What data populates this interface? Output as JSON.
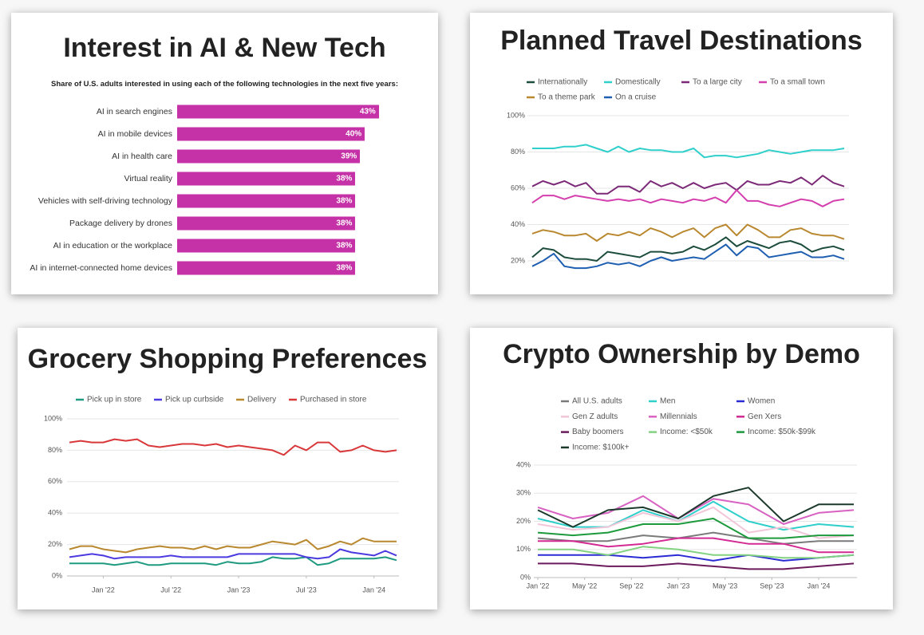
{
  "chart_data": [
    {
      "type": "bar",
      "title": "Interest in AI & New Tech",
      "subtitle": "Share of U.S. adults interested in using each of the following technologies in the next five years:",
      "categories": [
        "AI in search engines",
        "AI in mobile devices",
        "AI in health care",
        "Virtual reality",
        "Vehicles with self-driving technology",
        "Package delivery by drones",
        "AI in education or the workplace",
        "AI in internet-connected home devices"
      ],
      "values": [
        43,
        40,
        39,
        38,
        38,
        38,
        38,
        38
      ],
      "value_labels": [
        "43%",
        "40%",
        "39%",
        "38%",
        "38%",
        "38%",
        "38%",
        "38%"
      ],
      "color": "#c531a6"
    },
    {
      "type": "line",
      "title": "Planned Travel Destinations",
      "ylim": [
        15,
        100
      ],
      "yticks": [
        {
          "value": 20,
          "label": "20%"
        },
        {
          "value": 40,
          "label": "40%"
        },
        {
          "value": 60,
          "label": "60%"
        },
        {
          "value": 80,
          "label": "80%"
        },
        {
          "value": 100,
          "label": "100%"
        }
      ],
      "grid": true,
      "series": [
        {
          "name": "Internationally",
          "color": "#1d4d3c",
          "values": [
            22,
            27,
            26,
            22,
            21,
            21,
            20,
            25,
            24,
            23,
            22,
            25,
            25,
            24,
            25,
            28,
            26,
            29,
            33,
            28,
            31,
            29,
            27,
            30,
            31,
            29,
            25,
            27,
            28,
            26
          ]
        },
        {
          "name": "Domestically",
          "color": "#2fcfcb",
          "values": [
            82,
            82,
            82,
            83,
            83,
            84,
            82,
            80,
            83,
            80,
            82,
            81,
            81,
            80,
            80,
            82,
            77,
            78,
            78,
            77,
            78,
            79,
            81,
            80,
            79,
            80,
            81,
            81,
            81,
            82
          ]
        },
        {
          "name": "To a large city",
          "color": "#7c2a78",
          "values": [
            61,
            64,
            62,
            64,
            61,
            63,
            57,
            57,
            61,
            61,
            58,
            64,
            61,
            63,
            60,
            63,
            60,
            62,
            63,
            59,
            64,
            62,
            62,
            64,
            63,
            66,
            62,
            67,
            63,
            61
          ]
        },
        {
          "name": "To a small town",
          "color": "#d43fae",
          "values": [
            52,
            56,
            56,
            54,
            56,
            55,
            54,
            53,
            54,
            53,
            54,
            52,
            54,
            53,
            52,
            54,
            53,
            55,
            52,
            59,
            53,
            53,
            51,
            50,
            52,
            54,
            53,
            50,
            53,
            54
          ]
        },
        {
          "name": "To a theme park",
          "color": "#b9882f",
          "values": [
            35,
            37,
            36,
            34,
            34,
            35,
            31,
            35,
            34,
            36,
            34,
            38,
            36,
            33,
            36,
            38,
            33,
            38,
            40,
            34,
            40,
            37,
            33,
            33,
            37,
            38,
            35,
            34,
            34,
            32
          ]
        },
        {
          "name": "On a cruise",
          "color": "#1f5fb2",
          "values": [
            17,
            20,
            24,
            17,
            16,
            16,
            17,
            19,
            18,
            19,
            17,
            20,
            22,
            20,
            21,
            22,
            21,
            25,
            29,
            23,
            28,
            27,
            22,
            23,
            24,
            25,
            22,
            22,
            23,
            21
          ]
        }
      ]
    },
    {
      "type": "line",
      "title": "Grocery Shopping Preferences",
      "x": [
        "2021-10",
        "2021-11",
        "2021-12",
        "2022-01",
        "2022-02",
        "2022-03",
        "2022-04",
        "2022-05",
        "2022-06",
        "2022-07",
        "2022-08",
        "2022-09",
        "2022-10",
        "2022-11",
        "2022-12",
        "2023-01",
        "2023-02",
        "2023-03",
        "2023-04",
        "2023-05",
        "2023-06",
        "2023-07",
        "2023-08",
        "2023-09",
        "2023-10",
        "2023-11",
        "2023-12",
        "2024-01",
        "2024-02",
        "2024-03"
      ],
      "xlim": [
        "2021-10",
        "2024-03"
      ],
      "xticks": [
        {
          "value": "2022-01",
          "label": "Jan '22"
        },
        {
          "value": "2022-07",
          "label": "Jul '22"
        },
        {
          "value": "2023-01",
          "label": "Jan '23"
        },
        {
          "value": "2023-07",
          "label": "Jul '23"
        },
        {
          "value": "2024-01",
          "label": "Jan '24"
        }
      ],
      "ylim": [
        0,
        100
      ],
      "yticks": [
        {
          "value": 0,
          "label": "0%"
        },
        {
          "value": 20,
          "label": "20%"
        },
        {
          "value": 40,
          "label": "40%"
        },
        {
          "value": 60,
          "label": "60%"
        },
        {
          "value": 80,
          "label": "80%"
        },
        {
          "value": 100,
          "label": "100%"
        }
      ],
      "grid": true,
      "series": [
        {
          "name": "Pick up in store",
          "color": "#1e9a80",
          "values": [
            8,
            8,
            8,
            8,
            7,
            8,
            9,
            7,
            7,
            8,
            8,
            8,
            8,
            7,
            9,
            8,
            8,
            9,
            12,
            11,
            11,
            12,
            7,
            8,
            11,
            11,
            11,
            11,
            12,
            10
          ]
        },
        {
          "name": "Pick up curbside",
          "color": "#4b3ae0",
          "values": [
            12,
            13,
            14,
            13,
            11,
            12,
            12,
            12,
            12,
            13,
            12,
            12,
            12,
            12,
            12,
            14,
            14,
            14,
            14,
            14,
            14,
            12,
            11,
            12,
            17,
            15,
            14,
            13,
            16,
            13
          ]
        },
        {
          "name": "Delivery",
          "color": "#b9882f",
          "values": [
            17,
            19,
            19,
            17,
            16,
            15,
            17,
            18,
            19,
            18,
            18,
            17,
            19,
            17,
            19,
            18,
            18,
            20,
            22,
            21,
            20,
            23,
            17,
            19,
            22,
            20,
            24,
            22,
            22,
            22
          ]
        },
        {
          "name": "Purchased in store",
          "color": "#d9383a",
          "values": [
            85,
            86,
            85,
            85,
            87,
            86,
            87,
            83,
            82,
            83,
            84,
            84,
            83,
            84,
            82,
            83,
            82,
            81,
            80,
            77,
            83,
            80,
            85,
            85,
            79,
            80,
            83,
            80,
            79,
            80
          ]
        }
      ]
    },
    {
      "type": "line",
      "title": "Crypto Ownership by Demo",
      "x": [
        "2022-01",
        "2022-04",
        "2022-07",
        "2022-10",
        "2023-01",
        "2023-04",
        "2023-07",
        "2023-10",
        "2024-01",
        "2024-04"
      ],
      "xlim": [
        "2022-01",
        "2024-04"
      ],
      "xticks": [
        {
          "value": "2022-01",
          "label": "Jan '22"
        },
        {
          "value": "2022-05",
          "label": "May '22"
        },
        {
          "value": "2022-09",
          "label": "Sep '22"
        },
        {
          "value": "2023-01",
          "label": "Jan '23"
        },
        {
          "value": "2023-05",
          "label": "May '23"
        },
        {
          "value": "2023-09",
          "label": "Sep '23"
        },
        {
          "value": "2024-01",
          "label": "Jan '24"
        }
      ],
      "ylim": [
        0,
        40
      ],
      "yticks": [
        {
          "value": 0,
          "label": "0%"
        },
        {
          "value": 10,
          "label": "10%"
        },
        {
          "value": 20,
          "label": "20%"
        },
        {
          "value": 30,
          "label": "30%"
        },
        {
          "value": 40,
          "label": "40%"
        }
      ],
      "grid": true,
      "series": [
        {
          "name": "All U.S. adults",
          "color": "#7a7a7a",
          "values": [
            14,
            13,
            13,
            15,
            14,
            16,
            14,
            12,
            13,
            13
          ]
        },
        {
          "name": "Men",
          "color": "#2fcfcb",
          "values": [
            21,
            18,
            18,
            24,
            20,
            27,
            20,
            17,
            19,
            18
          ]
        },
        {
          "name": "Women",
          "color": "#2b2bd6",
          "values": [
            8,
            8,
            8,
            7,
            8,
            6,
            8,
            6,
            7,
            8
          ]
        },
        {
          "name": "Gen Z adults",
          "color": "#f2c6d8",
          "values": [
            19,
            17,
            18,
            23,
            20,
            25,
            16,
            18,
            14,
            15
          ]
        },
        {
          "name": "Millennials",
          "color": "#d862c2",
          "values": [
            25,
            21,
            23,
            29,
            21,
            28,
            26,
            19,
            23,
            24
          ]
        },
        {
          "name": "Gen Xers",
          "color": "#d22a92",
          "values": [
            13,
            13,
            11,
            12,
            14,
            14,
            12,
            12,
            9,
            9
          ]
        },
        {
          "name": "Baby boomers",
          "color": "#6b1b5c",
          "values": [
            5,
            5,
            4,
            4,
            5,
            4,
            3,
            3,
            4,
            5
          ]
        },
        {
          "name": "Income: <$50k",
          "color": "#82d282",
          "values": [
            10,
            10,
            8,
            11,
            10,
            8,
            8,
            7,
            7,
            8
          ]
        },
        {
          "name": "Income: $50k-$99k",
          "color": "#1c9a3c",
          "values": [
            16,
            15,
            16,
            19,
            19,
            21,
            14,
            14,
            15,
            15
          ]
        },
        {
          "name": "Income: $100k+",
          "color": "#1c3a2c",
          "values": [
            24,
            18,
            24,
            25,
            21,
            29,
            32,
            20,
            26,
            26
          ]
        }
      ]
    }
  ]
}
